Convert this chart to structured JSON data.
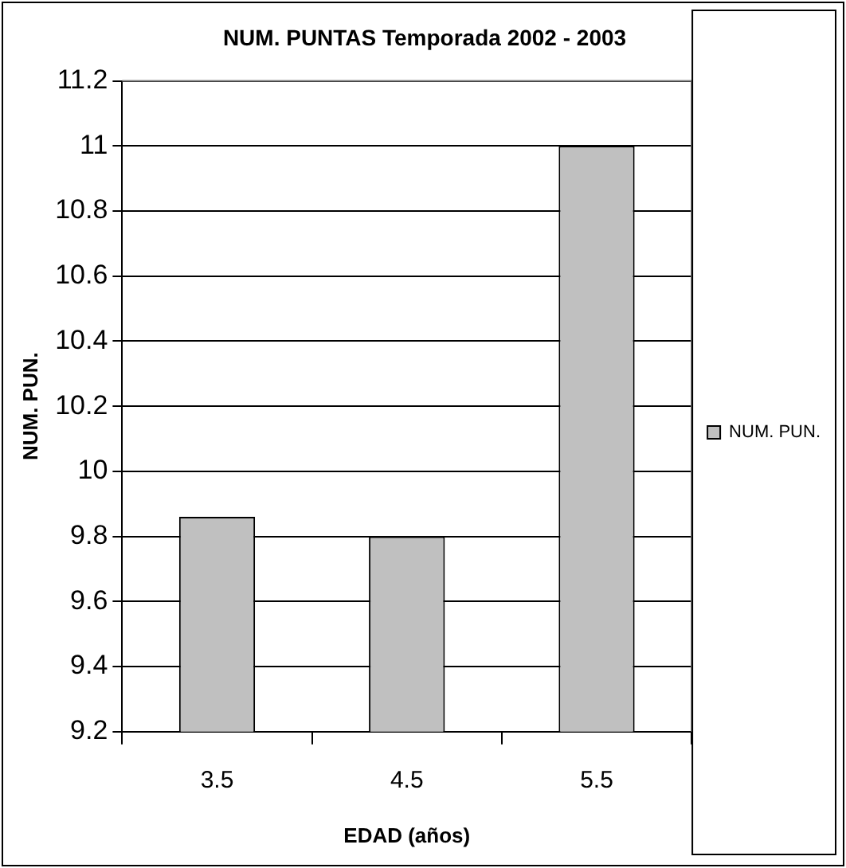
{
  "chart_data": {
    "type": "bar",
    "title": "NUM. PUNTAS Temporada 2002 - 2003",
    "xlabel": "EDAD (años)",
    "ylabel": "NUM. PUN.",
    "categories": [
      "3.5",
      "4.5",
      "5.5"
    ],
    "series": [
      {
        "name": "NUM. PUN.",
        "color": "#c0c0c0",
        "values": [
          9.86,
          9.8,
          11.0
        ]
      }
    ],
    "ylim": [
      9.2,
      11.2
    ],
    "yticks": [
      9.2,
      9.4,
      9.6,
      9.8,
      10,
      10.2,
      10.4,
      10.6,
      10.8,
      11,
      11.2
    ],
    "grid": "y",
    "legend": "right"
  }
}
